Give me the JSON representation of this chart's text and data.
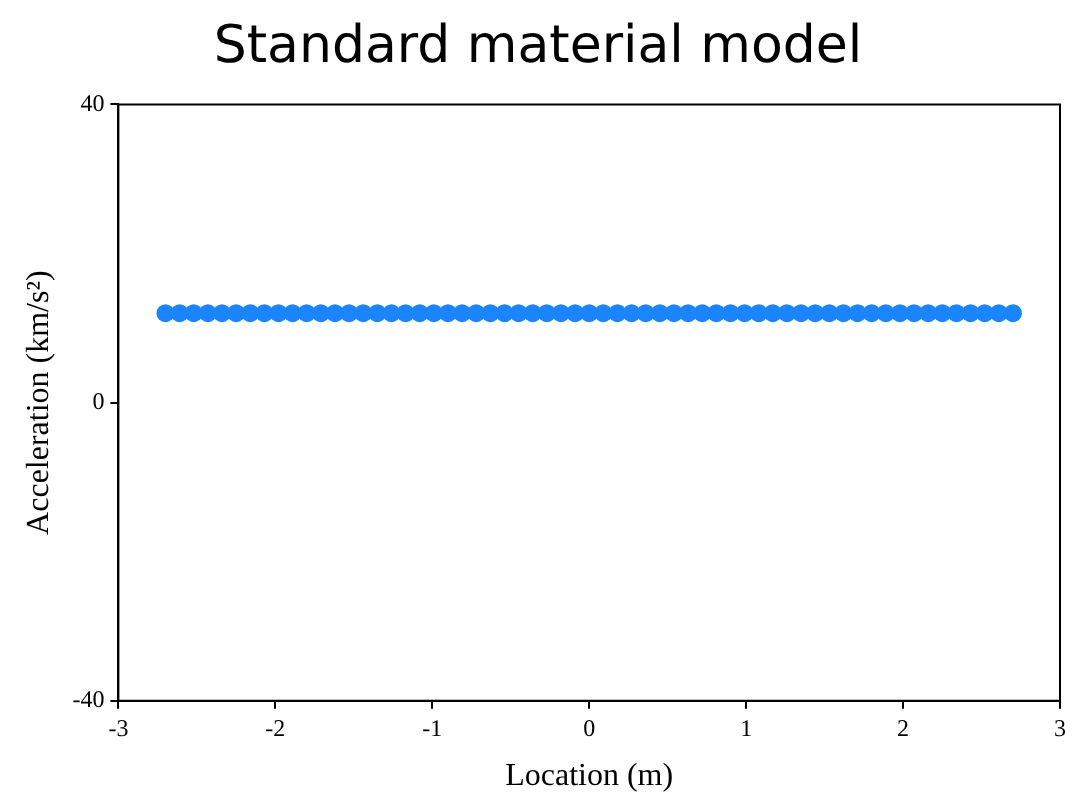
{
  "chart_data": {
    "type": "scatter",
    "title": "Standard material model",
    "xlabel": "Location (m)",
    "ylabel": "Acceleration (km/s²)",
    "x": [
      -2.7,
      -2.61,
      -2.52,
      -2.43,
      -2.34,
      -2.25,
      -2.16,
      -2.07,
      -1.98,
      -1.89,
      -1.8,
      -1.71,
      -1.62,
      -1.53,
      -1.44,
      -1.35,
      -1.26,
      -1.17,
      -1.08,
      -0.99,
      -0.9,
      -0.81,
      -0.72,
      -0.63,
      -0.54,
      -0.45,
      -0.36,
      -0.27,
      -0.18,
      -0.09,
      0,
      0.09,
      0.18,
      0.27,
      0.36,
      0.45,
      0.54,
      0.63,
      0.72,
      0.81,
      0.9,
      0.99,
      1.08,
      1.17,
      1.26,
      1.35,
      1.44,
      1.53,
      1.62,
      1.71,
      1.8,
      1.89,
      1.98,
      2.07,
      2.16,
      2.25,
      2.34,
      2.43,
      2.52,
      2.61,
      2.7
    ],
    "series": [
      {
        "color": "#1a85ff",
        "values": [
          12,
          12,
          12,
          12,
          12,
          12,
          12,
          12,
          12,
          12,
          12,
          12,
          12,
          12,
          12,
          12,
          12,
          12,
          12,
          12,
          12,
          12,
          12,
          12,
          12,
          12,
          12,
          12,
          12,
          12,
          12,
          12,
          12,
          12,
          12,
          12,
          12,
          12,
          12,
          12,
          12,
          12,
          12,
          12,
          12,
          12,
          12,
          12,
          12,
          12,
          12,
          12,
          12,
          12,
          12,
          12,
          12,
          12,
          12,
          12,
          12
        ]
      }
    ],
    "xlim": [
      -3,
      3
    ],
    "ylim": [
      -40,
      40
    ],
    "xticks": [
      -3,
      -2,
      -1,
      0,
      1,
      2,
      3
    ],
    "yticks": [
      -40,
      0,
      40
    ],
    "grid": false,
    "legend": false,
    "marker": "circle"
  }
}
